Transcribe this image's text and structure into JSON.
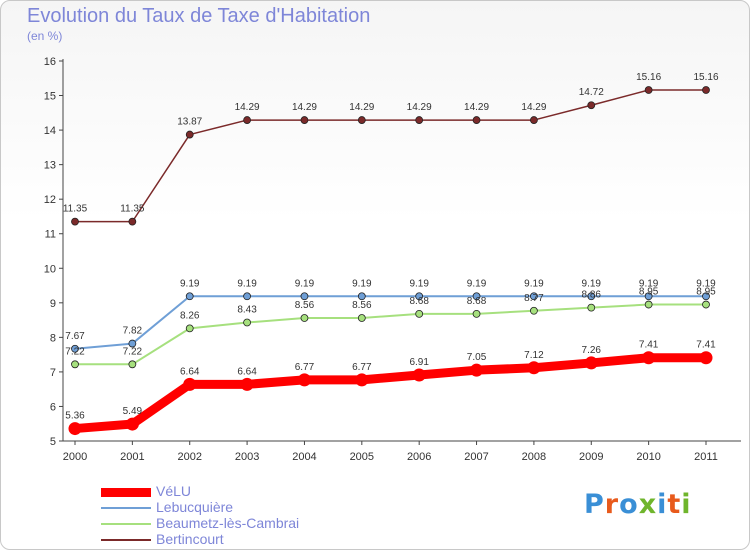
{
  "header": {
    "title": "Evolution du Taux de Taxe d'Habitation",
    "subtitle": "(en %)"
  },
  "logo": {
    "text": "Proxiti",
    "colors": [
      "#3a8fd6",
      "#e85a1c",
      "#3a8fd6",
      "#6fb52c",
      "#3a8fd6",
      "#e85a1c",
      "#6fb52c"
    ]
  },
  "chart_data": {
    "type": "line",
    "title": "Evolution du Taux de Taxe d'Habitation",
    "subtitle": "(en %)",
    "xlabel": "",
    "ylabel": "",
    "x": [
      "2000",
      "2001",
      "2002",
      "2003",
      "2004",
      "2005",
      "2006",
      "2007",
      "2008",
      "2009",
      "2010",
      "2011"
    ],
    "ylim": [
      5,
      16
    ],
    "yticks": [
      "5",
      "6",
      "7",
      "8",
      "9",
      "10",
      "11",
      "12",
      "13",
      "14",
      "15",
      "16"
    ],
    "grid": false,
    "legend_position": "bottom-left",
    "series": [
      {
        "name": "Bertincourt",
        "color": "#7b2a2a",
        "values": [
          11.35,
          11.35,
          13.87,
          14.29,
          14.29,
          14.29,
          14.29,
          14.29,
          14.29,
          14.72,
          15.16,
          15.16
        ],
        "labels": [
          "11.35",
          "11.35",
          "13.87",
          "14.29",
          "14.29",
          "14.29",
          "14.29",
          "14.29",
          "14.29",
          "14.72",
          "15.16",
          "15.16"
        ]
      },
      {
        "name": "Lebucquière",
        "color": "#6f9fd6",
        "values": [
          7.67,
          7.82,
          9.19,
          9.19,
          9.19,
          9.19,
          9.19,
          9.19,
          9.19,
          9.19,
          9.19,
          9.19
        ],
        "labels": [
          "7.67",
          "7.82",
          "9.19",
          "9.19",
          "9.19",
          "9.19",
          "9.19",
          "9.19",
          "9.19",
          "9.19",
          "9.19",
          "9.19"
        ]
      },
      {
        "name": "Beaumetz-lès-Cambrai",
        "color": "#a6e07e",
        "values": [
          7.22,
          7.22,
          8.26,
          8.43,
          8.56,
          8.56,
          8.68,
          8.68,
          8.77,
          8.86,
          8.95,
          8.95
        ],
        "labels": [
          "7.22",
          "7.22",
          "8.26",
          "8.43",
          "8.56",
          "8.56",
          "8.68",
          "8.68",
          "8.77",
          "8.86",
          "8.95",
          "8.95"
        ]
      },
      {
        "name": "VéLU",
        "color": "#ff0000",
        "values": [
          5.36,
          5.49,
          6.64,
          6.64,
          6.77,
          6.77,
          6.91,
          7.05,
          7.12,
          7.26,
          7.41,
          7.41
        ],
        "labels": [
          "5.36",
          "5.49",
          "6.64",
          "6.64",
          "6.77",
          "6.77",
          "6.91",
          "7.05",
          "7.12",
          "7.26",
          "7.41",
          "7.41"
        ]
      }
    ],
    "legend": [
      {
        "name": "VéLU",
        "color": "#ff0000"
      },
      {
        "name": "Lebucquière",
        "color": "#6f9fd6"
      },
      {
        "name": "Beaumetz-lès-Cambrai",
        "color": "#a6e07e"
      },
      {
        "name": "Bertincourt",
        "color": "#7b2a2a"
      }
    ]
  }
}
